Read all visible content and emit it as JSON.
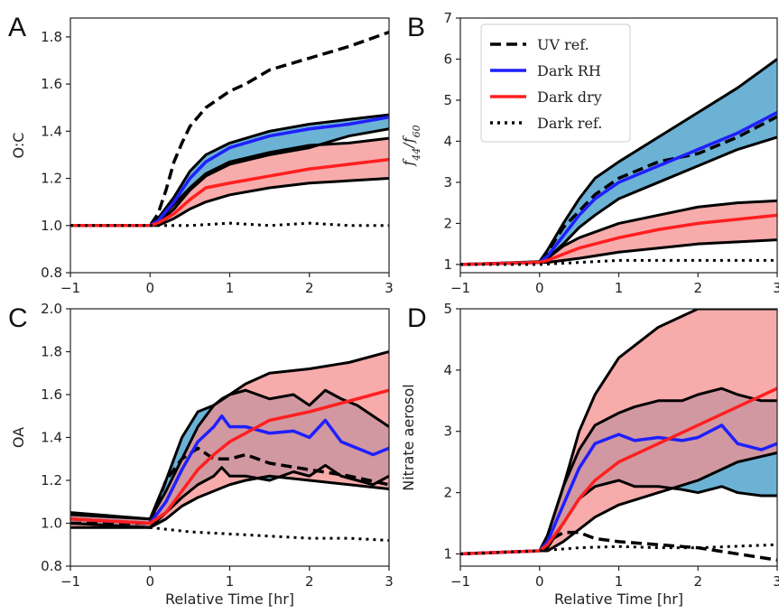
{
  "colors": {
    "rh": "#1f1fff",
    "dry": "#ff1f1f",
    "rh_fill": "#63aed3",
    "dry_fill": "#f48f8f",
    "black": "#000000"
  },
  "chart_data": [
    {
      "panel": "A",
      "type": "line",
      "ylabel": "O:C",
      "xlabel": "",
      "xlim": [
        -1,
        3
      ],
      "ylim": [
        0.8,
        1.88
      ],
      "xticks": [
        -1,
        0,
        1,
        2,
        3
      ],
      "yticks": [
        0.8,
        1.0,
        1.2,
        1.4,
        1.6,
        1.8
      ],
      "legend": null,
      "series": [
        {
          "key": "uv",
          "style": "dashed",
          "x": [
            -1,
            0,
            0.1,
            0.2,
            0.3,
            0.4,
            0.5,
            0.7,
            1,
            1.2,
            1.5,
            2,
            2.5,
            3
          ],
          "y": [
            1.0,
            1.0,
            1.05,
            1.15,
            1.27,
            1.35,
            1.42,
            1.5,
            1.57,
            1.6,
            1.66,
            1.71,
            1.76,
            1.82
          ]
        },
        {
          "key": "rh",
          "style": "solid",
          "x": [
            -1,
            0,
            0.1,
            0.3,
            0.5,
            0.7,
            1,
            1.5,
            2,
            2.5,
            3
          ],
          "y": [
            1.0,
            1.0,
            1.02,
            1.1,
            1.2,
            1.27,
            1.33,
            1.38,
            1.41,
            1.43,
            1.46
          ],
          "band": {
            "upper": [
              1.0,
              1.0,
              1.03,
              1.12,
              1.23,
              1.3,
              1.35,
              1.4,
              1.43,
              1.45,
              1.47
            ],
            "lower": [
              1.0,
              1.0,
              1.01,
              1.07,
              1.15,
              1.21,
              1.26,
              1.3,
              1.33,
              1.38,
              1.41
            ]
          }
        },
        {
          "key": "dry",
          "style": "solid",
          "x": [
            -1,
            0,
            0.1,
            0.3,
            0.5,
            0.7,
            1,
            1.5,
            2,
            2.5,
            3
          ],
          "y": [
            1.0,
            1.0,
            1.01,
            1.05,
            1.11,
            1.16,
            1.18,
            1.21,
            1.24,
            1.26,
            1.28
          ],
          "band": {
            "upper": [
              1.0,
              1.0,
              1.02,
              1.09,
              1.16,
              1.22,
              1.27,
              1.31,
              1.34,
              1.35,
              1.37
            ],
            "lower": [
              1.0,
              1.0,
              1.0,
              1.03,
              1.07,
              1.1,
              1.13,
              1.16,
              1.18,
              1.19,
              1.2
            ]
          }
        },
        {
          "key": "ref",
          "style": "dotted",
          "x": [
            -1,
            0,
            0.5,
            1,
            1.5,
            2,
            2.5,
            3
          ],
          "y": [
            1.0,
            1.0,
            1.0,
            1.01,
            1.0,
            1.01,
            1.0,
            1.0
          ]
        }
      ]
    },
    {
      "panel": "B",
      "type": "line",
      "ylabel": "f44/f60",
      "xlabel": "",
      "xlim": [
        -1,
        3
      ],
      "ylim": [
        0.8,
        7
      ],
      "xticks": [
        -1,
        0,
        1,
        2,
        3
      ],
      "yticks": [
        1,
        2,
        3,
        4,
        5,
        6,
        7
      ],
      "legend": {
        "position": "upper-left",
        "entries": [
          "UV ref.",
          "Dark RH",
          "Dark dry",
          "Dark ref."
        ]
      },
      "series": [
        {
          "key": "uv",
          "style": "dashed",
          "x": [
            -1,
            0,
            0.1,
            0.3,
            0.5,
            0.7,
            1,
            1.5,
            2,
            2.5,
            3
          ],
          "y": [
            1.0,
            1.05,
            1.3,
            1.9,
            2.3,
            2.7,
            3.1,
            3.5,
            3.7,
            4.1,
            4.6
          ]
        },
        {
          "key": "rh",
          "style": "solid",
          "x": [
            -1,
            0,
            0.1,
            0.3,
            0.5,
            0.7,
            1,
            1.5,
            2,
            2.5,
            3
          ],
          "y": [
            1.0,
            1.05,
            1.2,
            1.7,
            2.2,
            2.6,
            3.0,
            3.4,
            3.8,
            4.2,
            4.7
          ],
          "band": {
            "upper": [
              1.0,
              1.07,
              1.35,
              2.0,
              2.6,
              3.1,
              3.5,
              4.1,
              4.7,
              5.3,
              6.0
            ],
            "lower": [
              1.0,
              1.05,
              1.15,
              1.5,
              1.9,
              2.2,
              2.6,
              3.0,
              3.4,
              3.8,
              4.1
            ]
          }
        },
        {
          "key": "dry",
          "style": "solid",
          "x": [
            -1,
            0,
            0.1,
            0.3,
            0.5,
            1,
            1.5,
            2,
            2.5,
            3
          ],
          "y": [
            1.0,
            1.05,
            1.1,
            1.25,
            1.4,
            1.65,
            1.85,
            2.0,
            2.1,
            2.2
          ],
          "band": {
            "upper": [
              1.0,
              1.05,
              1.15,
              1.45,
              1.65,
              2.0,
              2.2,
              2.4,
              2.5,
              2.55
            ],
            "lower": [
              1.0,
              1.05,
              1.05,
              1.1,
              1.15,
              1.3,
              1.4,
              1.5,
              1.55,
              1.6
            ]
          }
        },
        {
          "key": "ref",
          "style": "dotted",
          "x": [
            -1,
            0,
            0.5,
            1,
            2,
            3
          ],
          "y": [
            1.0,
            1.0,
            1.05,
            1.1,
            1.1,
            1.1
          ]
        }
      ]
    },
    {
      "panel": "C",
      "type": "line",
      "ylabel": "OA",
      "xlabel": "Relative Time [hr]",
      "xlim": [
        -1,
        3
      ],
      "ylim": [
        0.8,
        2.0
      ],
      "xticks": [
        -1,
        0,
        1,
        2,
        3
      ],
      "yticks": [
        0.8,
        1.0,
        1.2,
        1.4,
        1.6,
        1.8,
        2.0
      ],
      "legend": null,
      "series": [
        {
          "key": "uv",
          "style": "dashed",
          "x": [
            -1,
            0,
            0.2,
            0.4,
            0.6,
            0.8,
            1,
            1.2,
            1.5,
            2,
            2.5,
            3
          ],
          "y": [
            1.0,
            1.0,
            1.2,
            1.3,
            1.35,
            1.3,
            1.3,
            1.32,
            1.28,
            1.25,
            1.22,
            1.18
          ]
        },
        {
          "key": "rh",
          "style": "solid",
          "x": [
            -1,
            0,
            0.2,
            0.4,
            0.6,
            0.8,
            0.9,
            1,
            1.2,
            1.5,
            1.8,
            2,
            2.2,
            2.4,
            2.6,
            2.8,
            3
          ],
          "y": [
            1.02,
            1.0,
            1.1,
            1.25,
            1.38,
            1.45,
            1.5,
            1.45,
            1.45,
            1.42,
            1.43,
            1.4,
            1.48,
            1.38,
            1.35,
            1.32,
            1.35
          ],
          "band": {
            "upper": [
              1.04,
              1.02,
              1.2,
              1.4,
              1.52,
              1.55,
              1.58,
              1.6,
              1.62,
              1.58,
              1.6,
              1.55,
              1.62,
              1.58,
              1.55,
              1.5,
              1.45
            ],
            "lower": [
              1.0,
              0.98,
              1.05,
              1.12,
              1.18,
              1.22,
              1.26,
              1.22,
              1.22,
              1.2,
              1.24,
              1.22,
              1.27,
              1.22,
              1.2,
              1.18,
              1.22
            ]
          }
        },
        {
          "key": "dry",
          "style": "solid",
          "x": [
            -1,
            0,
            0.2,
            0.4,
            0.6,
            0.8,
            1,
            1.2,
            1.5,
            2,
            2.5,
            3
          ],
          "y": [
            1.02,
            1.0,
            1.05,
            1.15,
            1.25,
            1.32,
            1.38,
            1.42,
            1.48,
            1.52,
            1.57,
            1.62
          ],
          "band": {
            "upper": [
              1.05,
              1.02,
              1.15,
              1.3,
              1.45,
              1.55,
              1.6,
              1.65,
              1.7,
              1.72,
              1.75,
              1.8
            ],
            "lower": [
              0.98,
              0.98,
              1.02,
              1.08,
              1.12,
              1.15,
              1.18,
              1.2,
              1.22,
              1.2,
              1.18,
              1.16
            ]
          }
        },
        {
          "key": "ref",
          "style": "dotted",
          "x": [
            -1,
            0,
            0.5,
            1,
            1.5,
            2,
            2.5,
            3
          ],
          "y": [
            1.0,
            0.98,
            0.96,
            0.95,
            0.94,
            0.93,
            0.93,
            0.92
          ]
        }
      ]
    },
    {
      "panel": "D",
      "type": "line",
      "ylabel": "Nitrate aerosol",
      "xlabel": "Relative Time [hr]",
      "xlim": [
        -1,
        3
      ],
      "ylim": [
        0.8,
        5.0
      ],
      "xticks": [
        -1,
        0,
        1,
        2,
        3
      ],
      "yticks": [
        1,
        2,
        3,
        4,
        5
      ],
      "legend": null,
      "series": [
        {
          "key": "uv",
          "style": "dashed",
          "x": [
            -1,
            0,
            0.1,
            0.3,
            0.5,
            0.7,
            1,
            1.5,
            2,
            2.5,
            3
          ],
          "y": [
            1.0,
            1.05,
            1.2,
            1.35,
            1.35,
            1.25,
            1.2,
            1.15,
            1.1,
            1.0,
            0.9
          ]
        },
        {
          "key": "rh",
          "style": "solid",
          "x": [
            -1,
            0,
            0.1,
            0.3,
            0.5,
            0.7,
            1,
            1.2,
            1.5,
            1.8,
            2,
            2.3,
            2.5,
            2.8,
            3
          ],
          "y": [
            1.0,
            1.05,
            1.2,
            1.8,
            2.4,
            2.8,
            2.95,
            2.85,
            2.9,
            2.85,
            2.9,
            3.1,
            2.8,
            2.7,
            2.8
          ],
          "band": {
            "upper": [
              1.0,
              1.05,
              1.3,
              2.1,
              2.7,
              3.1,
              3.3,
              3.4,
              3.5,
              3.5,
              3.6,
              3.7,
              3.6,
              3.5,
              3.5
            ],
            "lower": [
              1.0,
              1.05,
              1.1,
              1.5,
              1.9,
              2.1,
              2.2,
              2.1,
              2.1,
              2.05,
              2.0,
              2.1,
              2.0,
              1.95,
              1.95
            ]
          }
        },
        {
          "key": "dry",
          "style": "solid",
          "x": [
            -1,
            0,
            0.1,
            0.3,
            0.5,
            0.7,
            1,
            1.5,
            2,
            2.5,
            3
          ],
          "y": [
            1.0,
            1.05,
            1.15,
            1.5,
            1.9,
            2.2,
            2.5,
            2.8,
            3.1,
            3.4,
            3.7
          ],
          "band": {
            "upper": [
              1.0,
              1.05,
              1.3,
              2.1,
              3.0,
              3.6,
              4.2,
              4.7,
              5.0,
              5.0,
              5.0
            ],
            "lower": [
              1.0,
              1.05,
              1.05,
              1.2,
              1.4,
              1.6,
              1.8,
              2.0,
              2.2,
              2.5,
              2.65
            ]
          }
        },
        {
          "key": "ref",
          "style": "dotted",
          "x": [
            -1,
            0,
            0.5,
            1,
            1.5,
            2,
            3
          ],
          "y": [
            1.0,
            1.05,
            1.1,
            1.12,
            1.1,
            1.1,
            1.15
          ]
        }
      ]
    }
  ]
}
